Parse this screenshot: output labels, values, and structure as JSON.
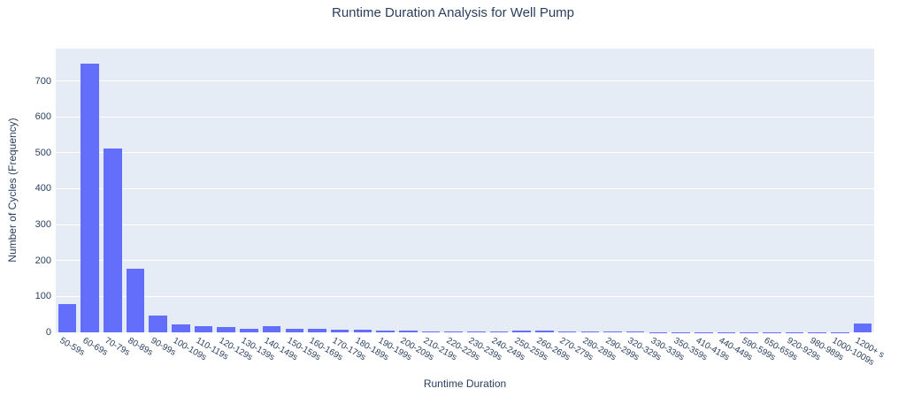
{
  "title": "Runtime Duration Analysis for Well Pump",
  "chart_data": {
    "type": "bar",
    "title": "Runtime Duration Analysis for Well Pump",
    "xlabel": "Runtime Duration",
    "ylabel": "Number of Cycles (Frequency)",
    "categories": [
      "50-59s",
      "60-69s",
      "70-79s",
      "80-89s",
      "90-99s",
      "100-109s",
      "110-119s",
      "120-129s",
      "130-139s",
      "140-149s",
      "150-159s",
      "160-169s",
      "170-179s",
      "180-189s",
      "190-199s",
      "200-209s",
      "210-219s",
      "220-229s",
      "230-239s",
      "240-249s",
      "250-259s",
      "260-269s",
      "270-279s",
      "280-289s",
      "290-299s",
      "320-329s",
      "330-339s",
      "350-359s",
      "410-419s",
      "440-449s",
      "590-599s",
      "650-659s",
      "920-929s",
      "980-989s",
      "1000-1009s",
      "1200+ s"
    ],
    "values": [
      80,
      748,
      511,
      178,
      48,
      23,
      18,
      14,
      11,
      17,
      11,
      10,
      8,
      7,
      6,
      4,
      2,
      2,
      2,
      2,
      4,
      4,
      2,
      2,
      2,
      2,
      1,
      1,
      1,
      1,
      1,
      1,
      1,
      1,
      1,
      25
    ],
    "ylim": [
      0,
      790
    ],
    "yticks": [
      0,
      100,
      200,
      300,
      400,
      500,
      600,
      700
    ],
    "grid": true,
    "legend": false,
    "bar_gap_fraction": 0.2,
    "x_label_angle_deg": 30,
    "colors": {
      "bar": "#636efa",
      "plot_background": "#e5ecf6",
      "gridline": "#ffffff",
      "text": "#2a3f5f",
      "page_background": "#ffffff"
    }
  }
}
